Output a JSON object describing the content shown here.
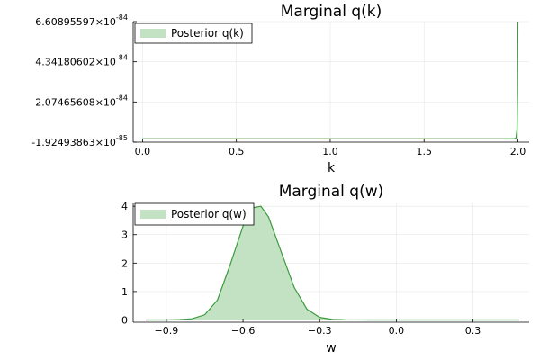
{
  "figure": {
    "colors": {
      "series_fill": "#c3e2c3",
      "series_line": "#3a9b3a",
      "grid": "#e6e6e6",
      "axis": "#000000"
    }
  },
  "chart_data": [
    {
      "type": "area",
      "title": "Marginal q(k)",
      "xlabel": "k",
      "ylabel": "",
      "xlim": [
        -0.05,
        2.06
      ],
      "ylim": [
        -1.92493863e-85,
        6.60895597e-84
      ],
      "xticks": [
        {
          "value": 0.0,
          "label": "0.0"
        },
        {
          "value": 0.5,
          "label": "0.5"
        },
        {
          "value": 1.0,
          "label": "1.0"
        },
        {
          "value": 1.5,
          "label": "1.5"
        },
        {
          "value": 2.0,
          "label": "2.0"
        }
      ],
      "yticks": [
        {
          "value": -1.92493863e-85,
          "mantissa": "-1.92493863",
          "base": "×10",
          "exponent": "-85"
        },
        {
          "value": 2.07465608e-84,
          "mantissa": "2.07465608",
          "base": "×10",
          "exponent": "-84"
        },
        {
          "value": 4.34180602e-84,
          "mantissa": "4.34180602",
          "base": "×10",
          "exponent": "-84"
        },
        {
          "value": 6.60895597e-84,
          "mantissa": "6.60895597",
          "base": "×10",
          "exponent": "-84"
        }
      ],
      "grid": true,
      "legend_position": "top-left",
      "series": [
        {
          "name": "Posterior q(k)",
          "x": [
            0.0,
            0.5,
            1.0,
            1.5,
            1.95,
            1.975,
            1.985,
            1.99,
            1.995,
            1.998,
            2.0
          ],
          "y": [
            0,
            0,
            0,
            0,
            0,
            1e-87,
            1e-86,
            6e-86,
            5e-85,
            2.5e-84,
            6.60895597e-84
          ]
        }
      ]
    },
    {
      "type": "area",
      "title": "Marginal q(w)",
      "xlabel": "w",
      "ylabel": "",
      "xlim": [
        -1.03,
        0.52
      ],
      "ylim": [
        -0.08,
        4.1
      ],
      "xticks": [
        {
          "value": -0.9,
          "label": "−0.9"
        },
        {
          "value": -0.6,
          "label": "−0.6"
        },
        {
          "value": -0.3,
          "label": "−0.3"
        },
        {
          "value": 0.0,
          "label": "0.0"
        },
        {
          "value": 0.3,
          "label": "0.3"
        }
      ],
      "yticks": [
        {
          "value": 0,
          "label": "0"
        },
        {
          "value": 1,
          "label": "1"
        },
        {
          "value": 2,
          "label": "2"
        },
        {
          "value": 3,
          "label": "3"
        },
        {
          "value": 4,
          "label": "4"
        }
      ],
      "grid": true,
      "legend_position": "top-left",
      "series": [
        {
          "name": "Posterior q(w)",
          "x": [
            -0.98,
            -0.9,
            -0.85,
            -0.8,
            -0.75,
            -0.7,
            -0.65,
            -0.6,
            -0.56,
            -0.53,
            -0.5,
            -0.45,
            -0.4,
            -0.35,
            -0.3,
            -0.25,
            -0.2,
            -0.1,
            0.0,
            0.2,
            0.4,
            0.48
          ],
          "y": [
            0.0,
            0.0,
            0.01,
            0.04,
            0.18,
            0.7,
            1.95,
            3.3,
            3.95,
            4.0,
            3.62,
            2.38,
            1.15,
            0.38,
            0.09,
            0.02,
            0.005,
            0.0,
            0.0,
            0.0,
            0.0,
            0.0
          ]
        }
      ]
    }
  ]
}
